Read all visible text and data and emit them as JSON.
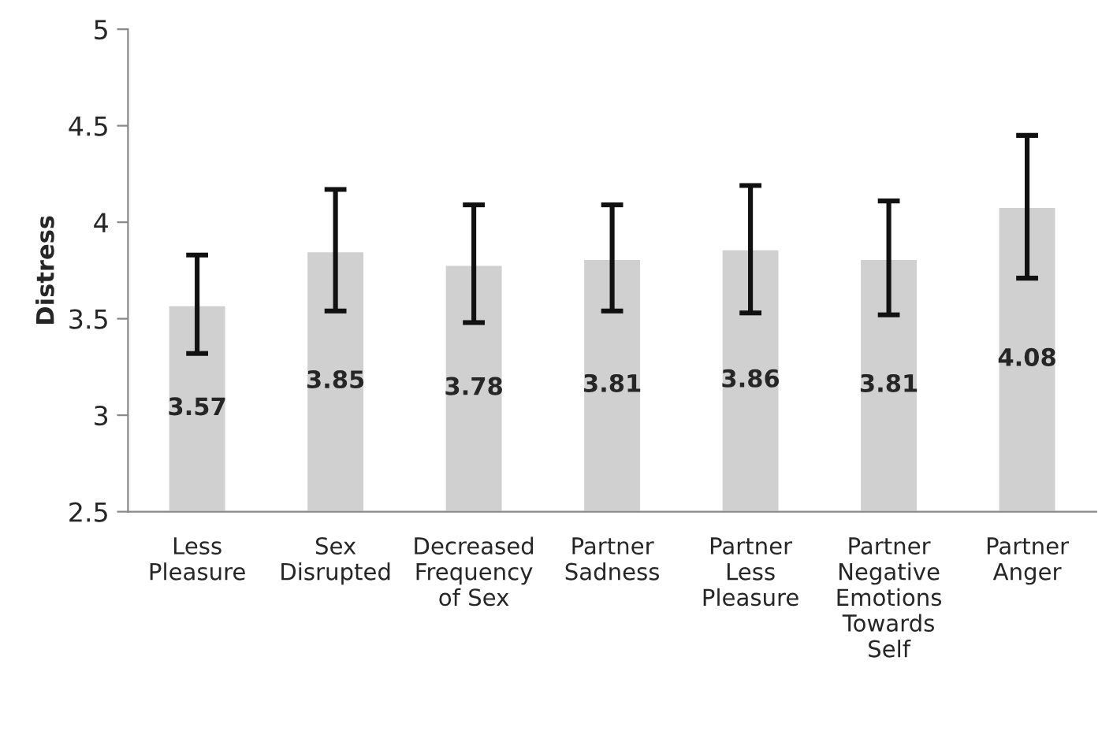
{
  "chart_data": {
    "type": "bar",
    "ylabel": "Distress",
    "categories": [
      "Less\nPleasure",
      "Sex\nDisrupted",
      "Decreased\nFrequency\nof Sex",
      "Partner\nSadness",
      "Partner\nLess\nPleasure",
      "Partner\nNegative\nEmotions\nTowards\nSelf",
      "Partner\nAnger"
    ],
    "values": [
      3.57,
      3.85,
      3.78,
      3.81,
      3.86,
      3.81,
      4.08
    ],
    "errors": [
      [
        3.32,
        3.83
      ],
      [
        3.54,
        4.17
      ],
      [
        3.48,
        4.09
      ],
      [
        3.54,
        4.09
      ],
      [
        3.53,
        4.19
      ],
      [
        3.52,
        4.11
      ],
      [
        3.71,
        4.45
      ]
    ],
    "color": "#d0d0d0",
    "data_labels": true,
    "grid": false,
    "legend": false,
    "ylim": [
      2.5,
      5
    ],
    "yticks": [
      2.5,
      3,
      3.5,
      4,
      4.5,
      5
    ]
  }
}
